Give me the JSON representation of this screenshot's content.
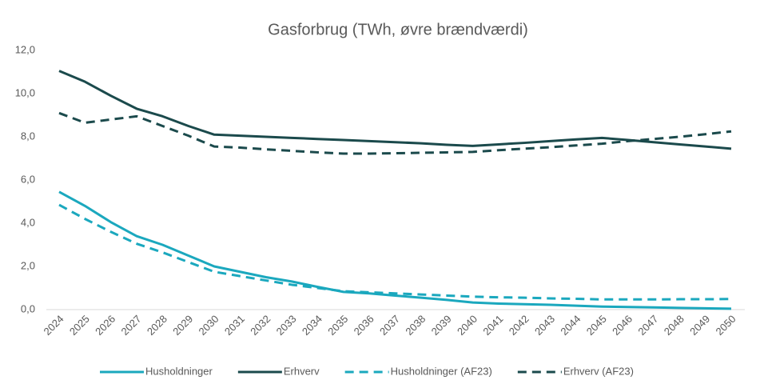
{
  "chart_data": {
    "type": "line",
    "title": "Gasforbrug (TWh, øvre brændværdi)",
    "categories": [
      "2024",
      "2025",
      "2026",
      "2027",
      "2028",
      "2029",
      "2030",
      "2031",
      "2032",
      "2033",
      "2034",
      "2035",
      "2036",
      "2037",
      "2038",
      "2039",
      "2040",
      "2041",
      "2042",
      "2043",
      "2044",
      "2045",
      "2046",
      "2047",
      "2048",
      "2049",
      "2050"
    ],
    "series": [
      {
        "name": "Husholdninger",
        "color": "#1ba8be",
        "dashed": false,
        "values": [
          5.45,
          4.8,
          4.05,
          3.4,
          3.0,
          2.5,
          2.0,
          1.75,
          1.5,
          1.3,
          1.05,
          0.82,
          0.75,
          0.65,
          0.55,
          0.45,
          0.33,
          0.28,
          0.25,
          0.22,
          0.18,
          0.14,
          0.12,
          0.1,
          0.08,
          0.06,
          0.04
        ]
      },
      {
        "name": "Erhverv",
        "color": "#1b4a4c",
        "dashed": false,
        "values": [
          11.05,
          10.55,
          9.9,
          9.3,
          8.95,
          8.5,
          8.1,
          8.05,
          8.0,
          7.95,
          7.9,
          7.85,
          7.8,
          7.75,
          7.7,
          7.63,
          7.58,
          7.65,
          7.72,
          7.8,
          7.88,
          7.95,
          7.85,
          7.75,
          7.65,
          7.55,
          7.45
        ]
      },
      {
        "name": "Husholdninger (AF23)",
        "color": "#1ba8be",
        "dashed": true,
        "values": [
          4.85,
          4.2,
          3.6,
          3.05,
          2.65,
          2.2,
          1.75,
          1.55,
          1.35,
          1.15,
          1.0,
          0.85,
          0.8,
          0.75,
          0.7,
          0.65,
          0.6,
          0.57,
          0.55,
          0.52,
          0.5,
          0.47,
          0.47,
          0.47,
          0.48,
          0.48,
          0.49
        ]
      },
      {
        "name": "Erhverv (AF23)",
        "color": "#1b4a4c",
        "dashed": true,
        "values": [
          9.1,
          8.65,
          8.8,
          8.95,
          8.5,
          8.05,
          7.55,
          7.5,
          7.42,
          7.35,
          7.28,
          7.22,
          7.22,
          7.24,
          7.26,
          7.28,
          7.3,
          7.38,
          7.45,
          7.52,
          7.6,
          7.68,
          7.8,
          7.9,
          8.0,
          8.12,
          8.25
        ]
      }
    ],
    "ylim": [
      0,
      12
    ],
    "yticks": [
      {
        "value": 0,
        "label": "0,0"
      },
      {
        "value": 2,
        "label": "2,0"
      },
      {
        "value": 4,
        "label": "4,0"
      },
      {
        "value": 6,
        "label": "6,0"
      },
      {
        "value": 8,
        "label": "8,0"
      },
      {
        "value": 10,
        "label": "10,0"
      },
      {
        "value": 12,
        "label": "12,0"
      }
    ],
    "grid": false,
    "legend": "bottom"
  }
}
